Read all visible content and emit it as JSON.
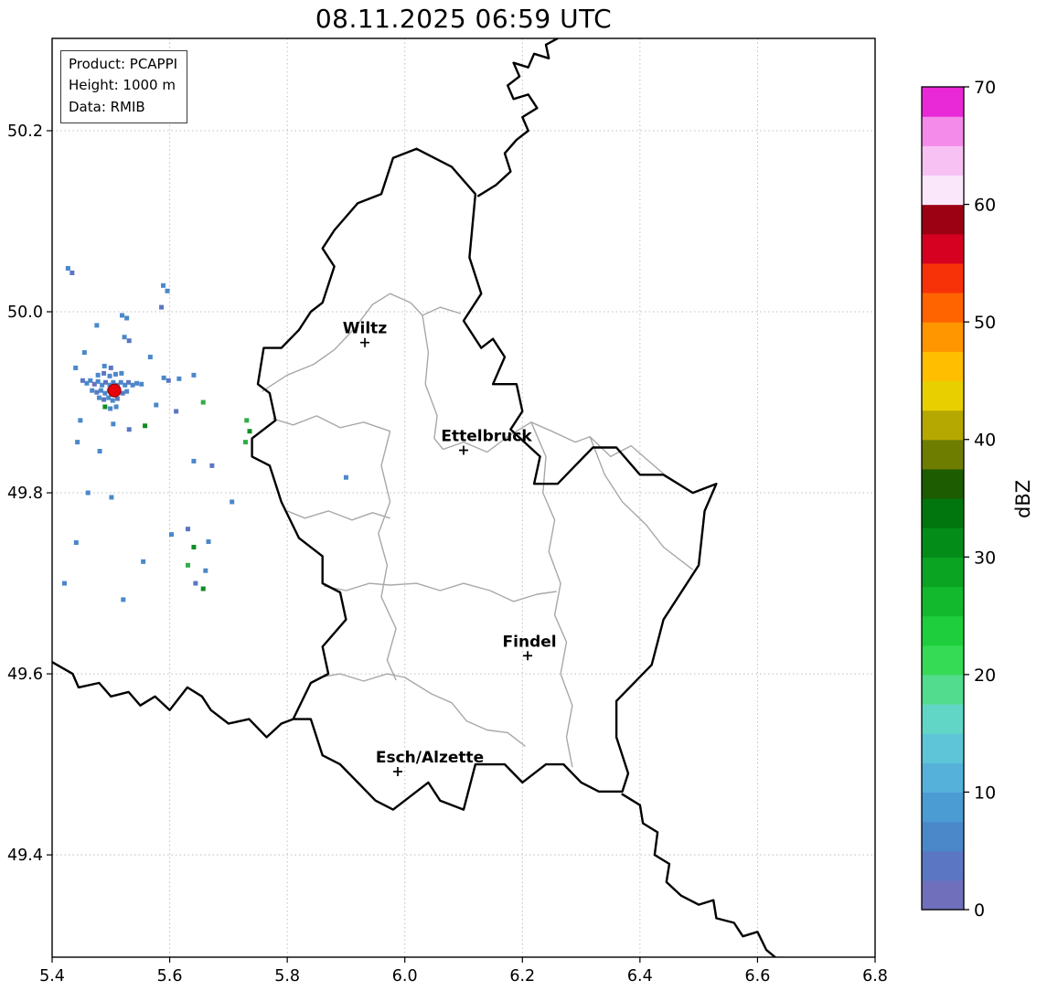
{
  "title": "08.11.2025 06:59 UTC",
  "info_box": {
    "lines": [
      "Product: PCAPPI",
      "Height: 1000 m",
      "Data: RMIB"
    ]
  },
  "axes": {
    "x": {
      "range": [
        5.4,
        6.8
      ],
      "ticks": [
        "5.4",
        "5.6",
        "5.8",
        "6.0",
        "6.2",
        "6.4",
        "6.6",
        "6.8"
      ]
    },
    "y": {
      "range": [
        49.287,
        50.302
      ],
      "ticks": [
        "49.4",
        "49.6",
        "49.8",
        "50.0",
        "50.2"
      ]
    }
  },
  "grid": {
    "color": "#bfbfbf"
  },
  "colorbar": {
    "label": "dBZ",
    "min": 0,
    "max": 70,
    "ticks": [
      0,
      10,
      20,
      30,
      40,
      50,
      60,
      70
    ],
    "colors": [
      "#6f6fbc",
      "#5b76c3",
      "#4a88ca",
      "#4b9cd3",
      "#55b1d9",
      "#5ec5d9",
      "#62d6c6",
      "#52dc8d",
      "#35da55",
      "#1fce3c",
      "#12b92d",
      "#0aa322",
      "#048c18",
      "#01760f",
      "#1d5c00",
      "#6e7c00",
      "#b5a800",
      "#e8d000",
      "#ffbe00",
      "#ff9600",
      "#ff6400",
      "#f83208",
      "#d60020",
      "#9c0013",
      "#fae8fa",
      "#f7c1f4",
      "#f48ae9",
      "#e928d8"
    ]
  },
  "radar_site": {
    "lon": 5.506,
    "lat": 49.913,
    "color": "#e8000b"
  },
  "cities": [
    {
      "name": "Wiltz",
      "lon": 5.932,
      "lat": 49.966,
      "label_dx": 0
    },
    {
      "name": "Ettelbruck",
      "lon": 6.1,
      "lat": 49.847,
      "label_dx": 25
    },
    {
      "name": "Findel",
      "lon": 6.209,
      "lat": 49.62,
      "label_dx": 2
    },
    {
      "name": "Esch/Alzette",
      "lon": 5.988,
      "lat": 49.492,
      "label_dx": 35
    }
  ],
  "echo_colors": {
    "b1": "#4a88ca",
    "b2": "#5b76c3",
    "b3": "#6f6fbc",
    "g1": "#2fae47",
    "g2": "#0f8c24"
  },
  "echoes": [
    [
      5.452,
      49.924,
      "b2"
    ],
    [
      5.459,
      49.921,
      "b1"
    ],
    [
      5.465,
      49.924,
      "b1"
    ],
    [
      5.472,
      49.92,
      "b3"
    ],
    [
      5.478,
      49.923,
      "b1"
    ],
    [
      5.485,
      49.919,
      "b1"
    ],
    [
      5.491,
      49.922,
      "b2"
    ],
    [
      5.498,
      49.919,
      "b1"
    ],
    [
      5.504,
      49.922,
      "b1"
    ],
    [
      5.511,
      49.919,
      "b2"
    ],
    [
      5.517,
      49.922,
      "b1"
    ],
    [
      5.524,
      49.919,
      "b1"
    ],
    [
      5.53,
      49.922,
      "b2"
    ],
    [
      5.537,
      49.919,
      "b1"
    ],
    [
      5.544,
      49.921,
      "b1"
    ],
    [
      5.552,
      49.92,
      "b1"
    ],
    [
      5.468,
      49.913,
      "b1"
    ],
    [
      5.476,
      49.911,
      "b2"
    ],
    [
      5.483,
      49.913,
      "b1"
    ],
    [
      5.49,
      49.91,
      "b1"
    ],
    [
      5.497,
      49.913,
      "b3"
    ],
    [
      5.505,
      49.911,
      "b1"
    ],
    [
      5.512,
      49.913,
      "b1"
    ],
    [
      5.52,
      49.91,
      "b2"
    ],
    [
      5.527,
      49.912,
      "b1"
    ],
    [
      5.48,
      49.905,
      "b1"
    ],
    [
      5.488,
      49.903,
      "b2"
    ],
    [
      5.496,
      49.905,
      "b1"
    ],
    [
      5.503,
      49.902,
      "b1"
    ],
    [
      5.511,
      49.904,
      "b2"
    ],
    [
      5.478,
      49.93,
      "b1"
    ],
    [
      5.488,
      49.932,
      "b2"
    ],
    [
      5.498,
      49.929,
      "b1"
    ],
    [
      5.508,
      49.931,
      "b1"
    ],
    [
      5.518,
      49.932,
      "b1"
    ],
    [
      5.489,
      49.94,
      "b1"
    ],
    [
      5.5,
      49.938,
      "b2"
    ],
    [
      5.49,
      49.895,
      "g2"
    ],
    [
      5.499,
      49.893,
      "b1"
    ],
    [
      5.509,
      49.895,
      "b1"
    ],
    [
      5.427,
      50.048,
      "b1"
    ],
    [
      5.434,
      50.043,
      "b2"
    ],
    [
      5.589,
      50.029,
      "b1"
    ],
    [
      5.596,
      50.023,
      "b1"
    ],
    [
      5.586,
      50.005,
      "b2"
    ],
    [
      5.519,
      49.996,
      "b1"
    ],
    [
      5.527,
      49.993,
      "b1"
    ],
    [
      5.476,
      49.985,
      "b1"
    ],
    [
      5.523,
      49.972,
      "b1"
    ],
    [
      5.531,
      49.968,
      "b2"
    ],
    [
      5.455,
      49.955,
      "b1"
    ],
    [
      5.44,
      49.938,
      "b1"
    ],
    [
      5.567,
      49.95,
      "b1"
    ],
    [
      5.59,
      49.927,
      "b1"
    ],
    [
      5.598,
      49.924,
      "b2"
    ],
    [
      5.616,
      49.926,
      "b1"
    ],
    [
      5.641,
      49.93,
      "b1"
    ],
    [
      5.577,
      49.897,
      "b1"
    ],
    [
      5.611,
      49.89,
      "b2"
    ],
    [
      5.657,
      49.9,
      "g1"
    ],
    [
      5.448,
      49.88,
      "b1"
    ],
    [
      5.504,
      49.876,
      "b1"
    ],
    [
      5.531,
      49.87,
      "b2"
    ],
    [
      5.558,
      49.874,
      "g2"
    ],
    [
      5.443,
      49.856,
      "b1"
    ],
    [
      5.481,
      49.846,
      "b1"
    ],
    [
      5.731,
      49.88,
      "g1"
    ],
    [
      5.736,
      49.868,
      "g2"
    ],
    [
      5.729,
      49.856,
      "g1"
    ],
    [
      5.641,
      49.835,
      "b1"
    ],
    [
      5.672,
      49.83,
      "b2"
    ],
    [
      5.461,
      49.8,
      "b1"
    ],
    [
      5.501,
      49.795,
      "b1"
    ],
    [
      5.706,
      49.79,
      "b1"
    ],
    [
      5.9,
      49.817,
      "b1"
    ],
    [
      5.441,
      49.745,
      "b1"
    ],
    [
      5.555,
      49.724,
      "b1"
    ],
    [
      5.631,
      49.76,
      "b2"
    ],
    [
      5.603,
      49.754,
      "b1"
    ],
    [
      5.666,
      49.746,
      "b1"
    ],
    [
      5.641,
      49.74,
      "g2"
    ],
    [
      5.631,
      49.72,
      "g1"
    ],
    [
      5.661,
      49.714,
      "b1"
    ],
    [
      5.644,
      49.7,
      "b2"
    ],
    [
      5.657,
      49.694,
      "g2"
    ],
    [
      5.421,
      49.7,
      "b1"
    ],
    [
      5.521,
      49.682,
      "b1"
    ]
  ],
  "map": {
    "country_color": "#000000",
    "region_color": "#a8a8a8",
    "borders": {
      "luxembourg": [
        [
          6.02,
          50.18
        ],
        [
          6.08,
          50.16
        ],
        [
          6.12,
          50.13
        ],
        [
          6.11,
          50.06
        ],
        [
          6.13,
          50.02
        ],
        [
          6.1,
          49.99
        ],
        [
          6.13,
          49.96
        ],
        [
          6.15,
          49.97
        ],
        [
          6.17,
          49.95
        ],
        [
          6.15,
          49.92
        ],
        [
          6.19,
          49.92
        ],
        [
          6.2,
          49.89
        ],
        [
          6.18,
          49.87
        ],
        [
          6.23,
          49.84
        ],
        [
          6.22,
          49.81
        ],
        [
          6.26,
          49.81
        ],
        [
          6.29,
          49.83
        ],
        [
          6.32,
          49.85
        ],
        [
          6.36,
          49.85
        ],
        [
          6.4,
          49.82
        ],
        [
          6.44,
          49.82
        ],
        [
          6.49,
          49.8
        ],
        [
          6.53,
          49.81
        ],
        [
          6.51,
          49.78
        ],
        [
          6.5,
          49.72
        ],
        [
          6.44,
          49.66
        ],
        [
          6.42,
          49.61
        ],
        [
          6.36,
          49.57
        ],
        [
          6.36,
          49.53
        ],
        [
          6.38,
          49.49
        ],
        [
          6.37,
          49.47
        ],
        [
          6.33,
          49.47
        ],
        [
          6.3,
          49.48
        ],
        [
          6.27,
          49.5
        ],
        [
          6.24,
          49.5
        ],
        [
          6.2,
          49.48
        ],
        [
          6.17,
          49.5
        ],
        [
          6.12,
          49.5
        ],
        [
          6.1,
          49.45
        ],
        [
          6.06,
          49.46
        ],
        [
          6.04,
          49.48
        ],
        [
          5.98,
          49.45
        ],
        [
          5.95,
          49.46
        ],
        [
          5.92,
          49.48
        ],
        [
          5.89,
          49.5
        ],
        [
          5.86,
          49.51
        ],
        [
          5.84,
          49.55
        ],
        [
          5.81,
          49.55
        ],
        [
          5.84,
          49.59
        ],
        [
          5.87,
          49.6
        ],
        [
          5.86,
          49.63
        ],
        [
          5.9,
          49.66
        ],
        [
          5.89,
          49.69
        ],
        [
          5.86,
          49.7
        ],
        [
          5.86,
          49.73
        ],
        [
          5.82,
          49.75
        ],
        [
          5.79,
          49.79
        ],
        [
          5.77,
          49.83
        ],
        [
          5.74,
          49.84
        ],
        [
          5.74,
          49.86
        ],
        [
          5.78,
          49.88
        ],
        [
          5.77,
          49.91
        ],
        [
          5.75,
          49.92
        ],
        [
          5.76,
          49.96
        ],
        [
          5.79,
          49.96
        ],
        [
          5.82,
          49.98
        ],
        [
          5.84,
          50.0
        ],
        [
          5.86,
          50.01
        ],
        [
          5.88,
          50.05
        ],
        [
          5.86,
          50.07
        ],
        [
          5.88,
          50.09
        ],
        [
          5.92,
          50.12
        ],
        [
          5.96,
          50.13
        ],
        [
          5.98,
          50.17
        ],
        [
          6.02,
          50.18
        ]
      ],
      "belgium_germany_north": [
        [
          6.125,
          50.128
        ],
        [
          6.155,
          50.14
        ],
        [
          6.18,
          50.155
        ],
        [
          6.17,
          50.175
        ],
        [
          6.19,
          50.19
        ],
        [
          6.21,
          50.2
        ],
        [
          6.2,
          50.215
        ],
        [
          6.225,
          50.225
        ],
        [
          6.21,
          50.24
        ],
        [
          6.185,
          50.235
        ],
        [
          6.175,
          50.25
        ],
        [
          6.195,
          50.26
        ],
        [
          6.185,
          50.275
        ],
        [
          6.21,
          50.27
        ],
        [
          6.22,
          50.285
        ],
        [
          6.245,
          50.28
        ],
        [
          6.24,
          50.295
        ],
        [
          6.26,
          50.302
        ]
      ],
      "belgium_france_southwest": [
        [
          5.4,
          49.613
        ],
        [
          5.435,
          49.6
        ],
        [
          5.445,
          49.585
        ],
        [
          5.48,
          49.59
        ],
        [
          5.5,
          49.575
        ],
        [
          5.53,
          49.58
        ],
        [
          5.55,
          49.565
        ],
        [
          5.575,
          49.575
        ],
        [
          5.6,
          49.56
        ],
        [
          5.63,
          49.585
        ],
        [
          5.655,
          49.575
        ],
        [
          5.67,
          49.56
        ],
        [
          5.7,
          49.545
        ],
        [
          5.735,
          49.55
        ],
        [
          5.765,
          49.53
        ],
        [
          5.79,
          49.545
        ],
        [
          5.81,
          49.55
        ]
      ],
      "france_germany_southeast": [
        [
          6.37,
          49.467
        ],
        [
          6.4,
          49.455
        ],
        [
          6.405,
          49.435
        ],
        [
          6.43,
          49.425
        ],
        [
          6.425,
          49.4
        ],
        [
          6.45,
          49.39
        ],
        [
          6.445,
          49.37
        ],
        [
          6.47,
          49.355
        ],
        [
          6.5,
          49.345
        ],
        [
          6.525,
          49.35
        ],
        [
          6.53,
          49.33
        ],
        [
          6.56,
          49.325
        ],
        [
          6.575,
          49.31
        ],
        [
          6.6,
          49.315
        ],
        [
          6.615,
          49.295
        ],
        [
          6.63,
          49.287
        ]
      ]
    },
    "regions": [
      [
        [
          5.757,
          49.912
        ],
        [
          5.8,
          49.93
        ],
        [
          5.845,
          49.942
        ],
        [
          5.88,
          49.958
        ],
        [
          5.915,
          49.982
        ],
        [
          5.945,
          50.008
        ],
        [
          5.975,
          50.02
        ],
        [
          6.01,
          50.01
        ],
        [
          6.03,
          49.996
        ],
        [
          6.06,
          50.005
        ],
        [
          6.095,
          49.998
        ]
      ],
      [
        [
          5.775,
          49.882
        ],
        [
          5.81,
          49.875
        ],
        [
          5.85,
          49.885
        ],
        [
          5.89,
          49.872
        ],
        [
          5.93,
          49.878
        ],
        [
          5.975,
          49.868
        ]
      ],
      [
        [
          6.03,
          49.996
        ],
        [
          6.04,
          49.955
        ],
        [
          6.035,
          49.92
        ],
        [
          6.055,
          49.885
        ],
        [
          6.05,
          49.86
        ],
        [
          6.065,
          49.848
        ]
      ],
      [
        [
          6.065,
          49.848
        ],
        [
          6.1,
          49.856
        ],
        [
          6.14,
          49.845
        ],
        [
          6.175,
          49.862
        ],
        [
          6.215,
          49.878
        ],
        [
          6.25,
          49.868
        ],
        [
          6.29,
          49.856
        ],
        [
          6.315,
          49.862
        ],
        [
          6.35,
          49.84
        ],
        [
          6.385,
          49.852
        ],
        [
          6.44,
          49.821
        ]
      ],
      [
        [
          5.975,
          49.868
        ],
        [
          5.96,
          49.83
        ],
        [
          5.975,
          49.79
        ],
        [
          5.955,
          49.755
        ],
        [
          5.97,
          49.72
        ],
        [
          5.96,
          49.685
        ],
        [
          5.985,
          49.65
        ],
        [
          5.97,
          49.615
        ],
        [
          5.985,
          49.593
        ]
      ],
      [
        [
          5.8,
          49.78
        ],
        [
          5.83,
          49.772
        ],
        [
          5.87,
          49.78
        ],
        [
          5.91,
          49.77
        ],
        [
          5.945,
          49.778
        ],
        [
          5.975,
          49.772
        ]
      ],
      [
        [
          5.862,
          49.697
        ],
        [
          5.9,
          49.692
        ],
        [
          5.94,
          49.7
        ],
        [
          5.975,
          49.698
        ]
      ],
      [
        [
          5.855,
          49.596
        ],
        [
          5.89,
          49.6
        ],
        [
          5.93,
          49.592
        ],
        [
          5.97,
          49.6
        ],
        [
          6.0,
          49.596
        ],
        [
          6.045,
          49.578
        ],
        [
          6.08,
          49.568
        ],
        [
          6.105,
          49.548
        ],
        [
          6.14,
          49.538
        ],
        [
          6.175,
          49.535
        ],
        [
          6.205,
          49.52
        ]
      ],
      [
        [
          5.975,
          49.698
        ],
        [
          6.02,
          49.7
        ],
        [
          6.06,
          49.692
        ],
        [
          6.1,
          49.7
        ],
        [
          6.145,
          49.692
        ],
        [
          6.185,
          49.68
        ],
        [
          6.225,
          49.688
        ],
        [
          6.258,
          49.691
        ]
      ],
      [
        [
          6.215,
          49.878
        ],
        [
          6.24,
          49.84
        ],
        [
          6.235,
          49.8
        ],
        [
          6.255,
          49.77
        ],
        [
          6.245,
          49.735
        ],
        [
          6.265,
          49.7
        ],
        [
          6.255,
          49.665
        ],
        [
          6.275,
          49.635
        ],
        [
          6.265,
          49.6
        ],
        [
          6.285,
          49.565
        ],
        [
          6.275,
          49.53
        ],
        [
          6.285,
          49.497
        ]
      ],
      [
        [
          6.315,
          49.862
        ],
        [
          6.34,
          49.82
        ],
        [
          6.37,
          49.79
        ],
        [
          6.41,
          49.765
        ],
        [
          6.44,
          49.74
        ],
        [
          6.49,
          49.715
        ]
      ]
    ]
  }
}
